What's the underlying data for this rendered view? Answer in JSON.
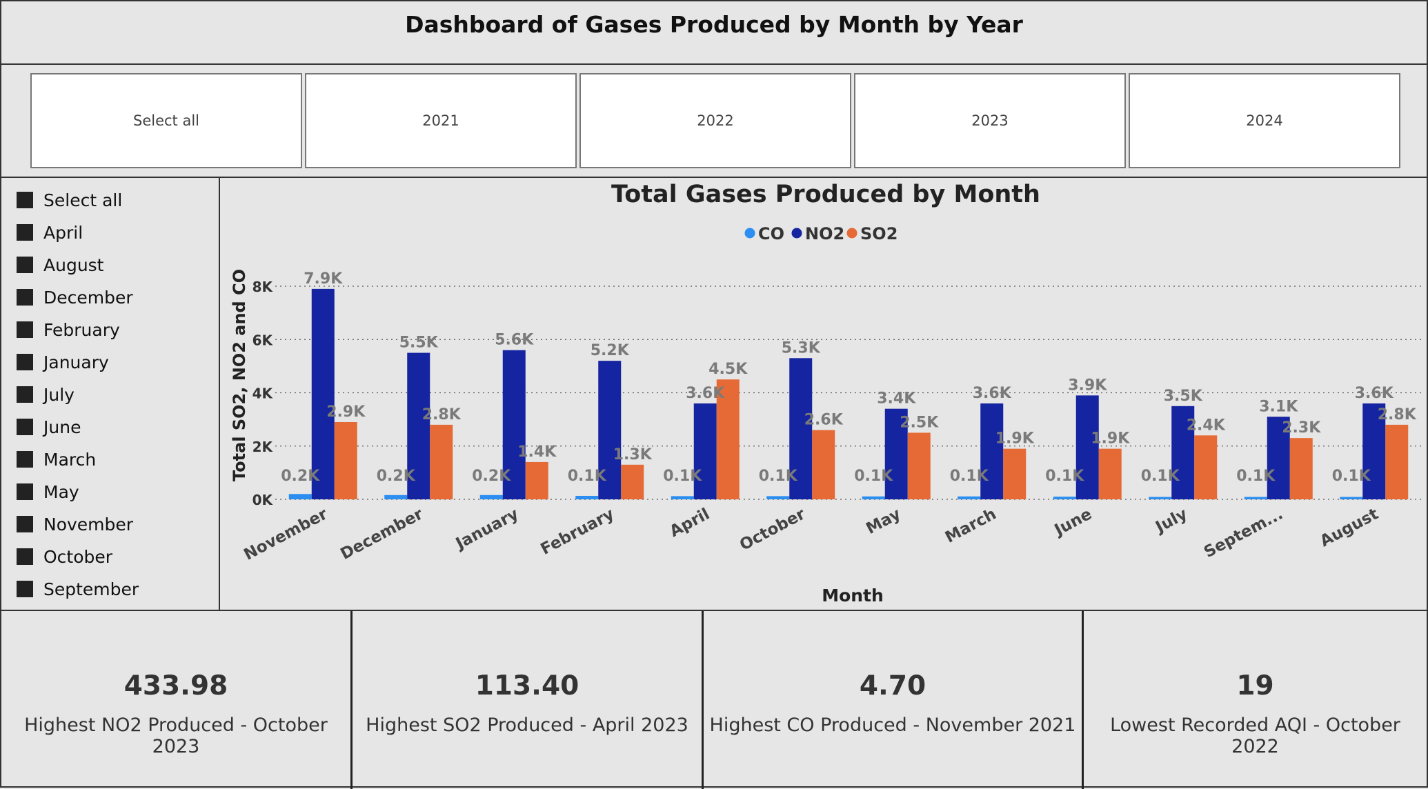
{
  "header": {
    "title": "Dashboard of Gases Produced by Month by Year"
  },
  "year_slicer": {
    "items": [
      "Select all",
      "2021",
      "2022",
      "2023",
      "2024"
    ]
  },
  "month_slicer": {
    "items": [
      "Select all",
      "April",
      "August",
      "December",
      "February",
      "January",
      "July",
      "June",
      "March",
      "May",
      "November",
      "October",
      "September"
    ]
  },
  "kpis": [
    {
      "value": "433.98",
      "label": "Highest NO2 Produced - October 2023"
    },
    {
      "value": "113.40",
      "label": "Highest SO2 Produced - April 2023"
    },
    {
      "value": "4.70",
      "label": "Highest CO Produced - November 2021"
    },
    {
      "value": "19",
      "label": "Lowest Recorded AQI - October 2022"
    }
  ],
  "colors": {
    "CO": "#2b8ef0",
    "NO2": "#1524a0",
    "SO2": "#e56a35"
  },
  "chart_data": {
    "type": "bar",
    "title": "Total Gases Produced by Month",
    "xlabel": "Month",
    "ylabel": "Total SO2, NO2 and CO",
    "legend_position": "top-center",
    "grid": true,
    "ylim": [
      0,
      8000
    ],
    "yticks": [
      "0K",
      "2K",
      "4K",
      "6K",
      "8K"
    ],
    "categories": [
      "November",
      "December",
      "January",
      "February",
      "April",
      "October",
      "May",
      "March",
      "June",
      "July",
      "Septem...",
      "August"
    ],
    "series": [
      {
        "name": "CO",
        "values": [
          200,
          160,
          160,
          130,
          120,
          120,
          110,
          110,
          100,
          90,
          90,
          90
        ],
        "labels": [
          "0.2K",
          "0.2K",
          "0.2K",
          "0.1K",
          "0.1K",
          "0.1K",
          "0.1K",
          "0.1K",
          "0.1K",
          "0.1K",
          "0.1K",
          "0.1K"
        ]
      },
      {
        "name": "NO2",
        "values": [
          7900,
          5500,
          5600,
          5200,
          3600,
          5300,
          3400,
          3600,
          3900,
          3500,
          3100,
          3600
        ],
        "labels": [
          "7.9K",
          "5.5K",
          "5.6K",
          "5.2K",
          "3.6K",
          "5.3K",
          "3.4K",
          "3.6K",
          "3.9K",
          "3.5K",
          "3.1K",
          "3.6K"
        ]
      },
      {
        "name": "SO2",
        "values": [
          2900,
          2800,
          1400,
          1300,
          4500,
          2600,
          2500,
          1900,
          1900,
          2400,
          2300,
          2800
        ],
        "labels": [
          "2.9K",
          "2.8K",
          "1.4K",
          "1.3K",
          "4.5K",
          "2.6K",
          "2.5K",
          "1.9K",
          "1.9K",
          "2.4K",
          "2.3K",
          "2.8K"
        ]
      }
    ]
  }
}
